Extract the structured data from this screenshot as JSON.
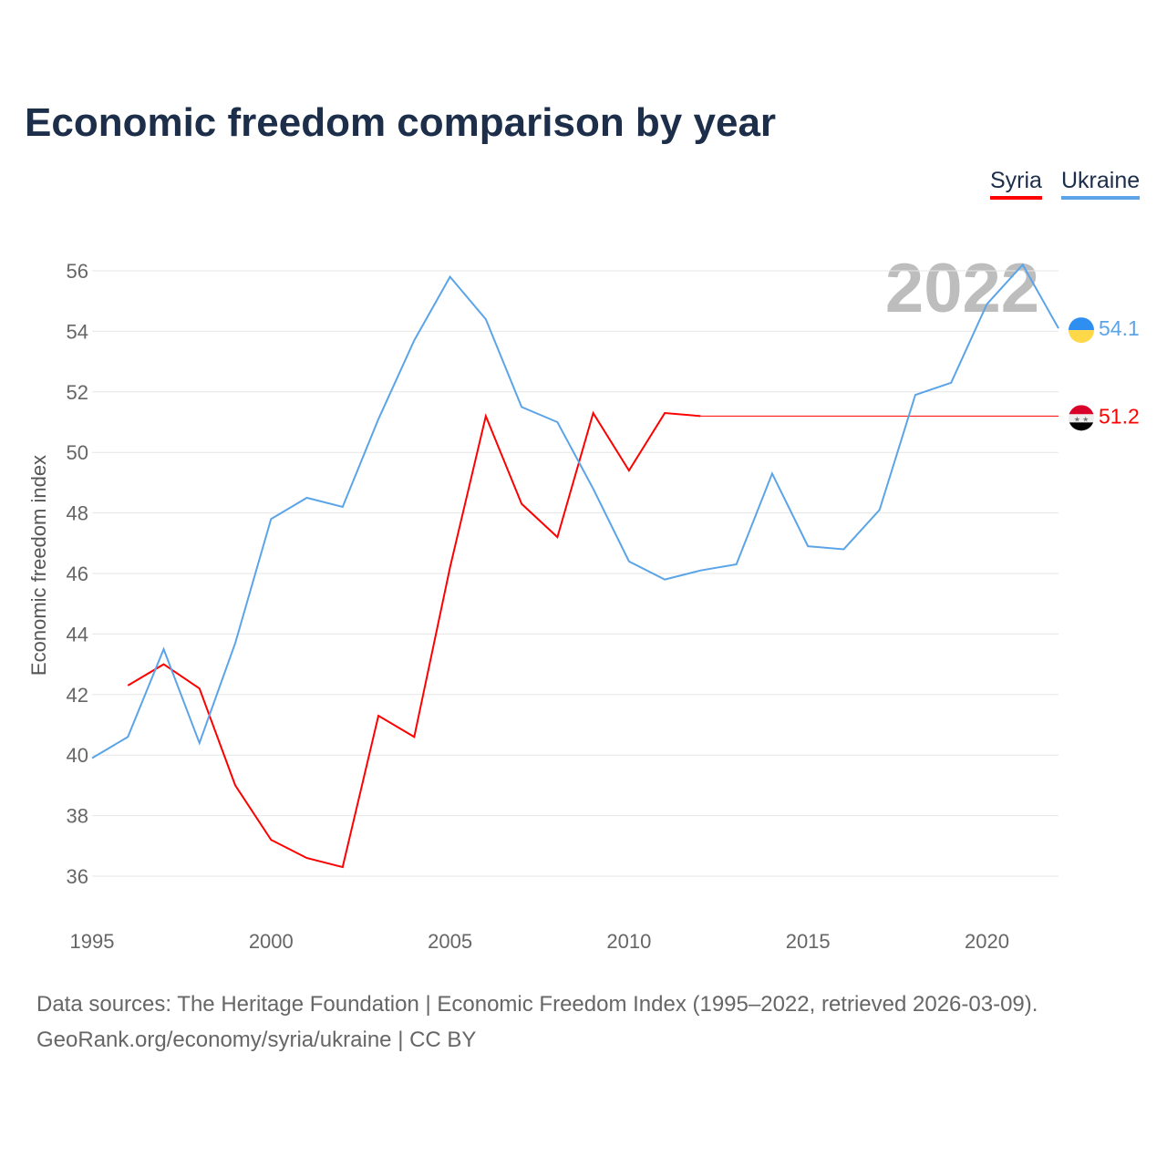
{
  "chart_data": {
    "type": "line",
    "title": "Economic freedom comparison by year",
    "xlabel": "",
    "ylabel": "Economic freedom index",
    "xlim": [
      1995,
      2022
    ],
    "ylim": [
      35,
      57
    ],
    "x_ticks": [
      1995,
      2000,
      2005,
      2010,
      2015,
      2020
    ],
    "y_ticks": [
      36,
      38,
      40,
      42,
      44,
      46,
      48,
      50,
      52,
      54,
      56
    ],
    "grid": true,
    "legend_position": "top-right",
    "year_watermark": "2022",
    "series": [
      {
        "name": "Syria",
        "color": "#ff0000",
        "end_label": "51.2",
        "x": [
          1996,
          1997,
          1998,
          1999,
          2000,
          2001,
          2002,
          2003,
          2004,
          2005,
          2006,
          2007,
          2008,
          2009,
          2010,
          2011,
          2012
        ],
        "values": [
          42.3,
          43.0,
          42.2,
          39.0,
          37.2,
          36.6,
          36.3,
          41.3,
          40.6,
          46.2,
          51.2,
          48.3,
          47.2,
          51.3,
          49.4,
          51.3,
          51.2
        ],
        "carried_forward_to": 2022
      },
      {
        "name": "Ukraine",
        "color": "#5ba4e8",
        "end_label": "54.1",
        "x": [
          1995,
          1996,
          1997,
          1998,
          1999,
          2000,
          2001,
          2002,
          2003,
          2004,
          2005,
          2006,
          2007,
          2008,
          2009,
          2010,
          2011,
          2012,
          2013,
          2014,
          2015,
          2016,
          2017,
          2018,
          2019,
          2020,
          2021,
          2022
        ],
        "values": [
          39.9,
          40.6,
          43.5,
          40.4,
          43.7,
          47.8,
          48.5,
          48.2,
          51.1,
          53.7,
          55.8,
          54.4,
          51.5,
          51.0,
          48.8,
          46.4,
          45.8,
          46.1,
          46.3,
          49.3,
          46.9,
          46.8,
          48.1,
          51.9,
          52.3,
          54.9,
          56.2,
          54.1
        ]
      }
    ]
  },
  "footer": {
    "line1": "Data sources: The Heritage Foundation | Economic Freedom Index (1995–2022, retrieved 2026-03-09).",
    "line2": "GeoRank.org/economy/syria/ukraine | CC BY"
  }
}
